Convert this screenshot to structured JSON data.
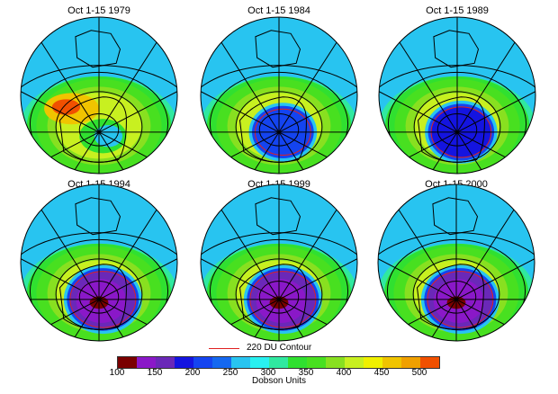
{
  "panels": [
    {
      "title": "Oct 1-15 1979",
      "min_du": 260,
      "hole_outline_220": false
    },
    {
      "title": "Oct 1-15 1984",
      "min_du": 180,
      "hole_outline_220": true
    },
    {
      "title": "Oct 1-15 1989",
      "min_du": 150,
      "hole_outline_220": true
    },
    {
      "title": "Oct 1-15 1994",
      "min_du": 110,
      "hole_outline_220": true
    },
    {
      "title": "Oct 1-15 1999",
      "min_du": 110,
      "hole_outline_220": true
    },
    {
      "title": "Oct 1-15 2000",
      "min_du": 110,
      "hole_outline_220": true
    }
  ],
  "legend": {
    "contour_label": "220 DU Contour",
    "contour_color": "#e02020"
  },
  "colorbar": {
    "label": "Dobson Units",
    "range": [
      100,
      525
    ],
    "step": 25,
    "ticks": [
      "100",
      "150",
      "200",
      "250",
      "300",
      "350",
      "400",
      "450",
      "500"
    ],
    "colors": [
      "#7a0000",
      "#8a18c8",
      "#6a28b8",
      "#1414e0",
      "#1444f0",
      "#1468f0",
      "#28c4f0",
      "#28f0f0",
      "#30e8a0",
      "#30e030",
      "#48e020",
      "#88e020",
      "#c8f020",
      "#f0f000",
      "#f0c400",
      "#f0a000",
      "#f05000"
    ]
  }
}
